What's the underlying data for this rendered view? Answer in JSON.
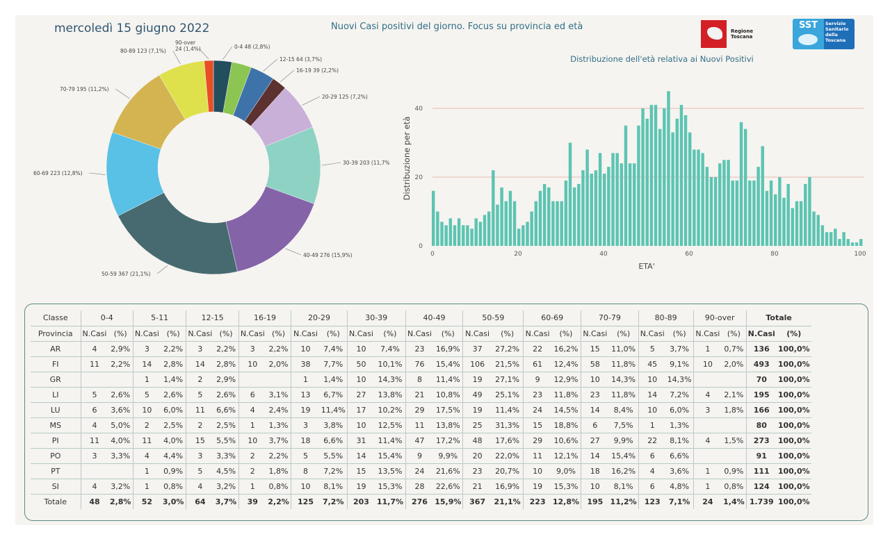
{
  "header": {
    "date": "mercoledì 15 giugno 2022",
    "title": "Nuovi Casi positivi del giorno. Focus su provincia ed età",
    "logo_regione": "Regione Toscana",
    "logo_sst_short": "SST",
    "logo_sst_text": "Servizio Sanitario della Toscana"
  },
  "colors": {
    "histogram_bar": "#5cc4b2",
    "gridline": "#e7b8b2",
    "table_border": "#5a8a86"
  },
  "chart_data": [
    {
      "type": "pie",
      "title": "",
      "categories": [
        "0-4",
        "5-11",
        "12-15",
        "16-19",
        "20-29",
        "30-39",
        "40-49",
        "50-59",
        "60-69",
        "70-79",
        "80-89",
        "90-over"
      ],
      "values": [
        48,
        52,
        64,
        39,
        125,
        203,
        276,
        367,
        223,
        195,
        123,
        24
      ],
      "percent_labels": [
        "2,8%",
        "3,0%",
        "3,7%",
        "2,2%",
        "7,2%",
        "11,7%",
        "15,9%",
        "21,1%",
        "12,8%",
        "11,2%",
        "7,1%",
        "1,4%"
      ],
      "slice_labels": [
        "0-4 48 (2,8%)",
        "",
        "12-15 64 (3,7%)",
        "16-19 39 (2,2%)",
        "20-29 125 (7,2%)",
        "30-39 203 (11,7%)",
        "40-49 276 (15,9%)",
        "50-59 367 (21,1%)",
        "60-69 223 (12,8%)",
        "70-79 195 (11,2%)",
        "80-89 123 (7,1%)",
        "90-over\n24 (1,4%)"
      ],
      "colors": [
        "#234e5e",
        "#8cc552",
        "#3e73aa",
        "#5c3130",
        "#c9b0d8",
        "#8ed2c4",
        "#8463a9",
        "#466a6f",
        "#59c0e6",
        "#d4b450",
        "#dee14c",
        "#e84e25"
      ]
    },
    {
      "type": "bar",
      "title": "Distribuzione dell'età relativa ai Nuovi Positivi",
      "xlabel": "ETA'",
      "ylabel": "Distribuzione per età",
      "xlim": [
        0,
        100
      ],
      "ylim": [
        0,
        45
      ],
      "xticks": [
        "0",
        "20",
        "40",
        "60",
        "80",
        "100"
      ],
      "yticks": [
        "0",
        "20",
        "40"
      ],
      "x": [
        0,
        1,
        2,
        3,
        4,
        5,
        6,
        7,
        8,
        9,
        10,
        11,
        12,
        13,
        14,
        15,
        16,
        17,
        18,
        19,
        20,
        21,
        22,
        23,
        24,
        25,
        26,
        27,
        28,
        29,
        30,
        31,
        32,
        33,
        34,
        35,
        36,
        37,
        38,
        39,
        40,
        41,
        42,
        43,
        44,
        45,
        46,
        47,
        48,
        49,
        50,
        51,
        52,
        53,
        54,
        55,
        56,
        57,
        58,
        59,
        60,
        61,
        62,
        63,
        64,
        65,
        66,
        67,
        68,
        69,
        70,
        71,
        72,
        73,
        74,
        75,
        76,
        77,
        78,
        79,
        80,
        81,
        82,
        83,
        84,
        85,
        86,
        87,
        88,
        89,
        90,
        91,
        92,
        93,
        94,
        95,
        96,
        97,
        98,
        99,
        100
      ],
      "values": [
        16,
        10,
        7,
        6,
        8,
        6,
        8,
        6,
        6,
        5,
        8,
        7,
        9,
        10,
        22,
        12,
        17,
        13,
        16,
        13,
        5,
        6,
        7,
        10,
        13,
        16,
        18,
        17,
        13,
        13,
        13,
        19,
        30,
        17,
        18,
        22,
        28,
        21,
        22,
        27,
        21,
        23,
        27,
        27,
        24,
        35,
        24,
        24,
        35,
        40,
        37,
        41,
        41,
        34,
        40,
        45,
        33,
        37,
        41,
        38,
        33,
        28,
        28,
        27,
        23,
        20,
        20,
        24,
        25,
        25,
        19,
        19,
        36,
        34,
        19,
        19,
        23,
        29,
        16,
        19,
        15,
        20,
        14,
        18,
        11,
        13,
        13,
        18,
        20,
        10,
        9,
        6,
        4,
        4,
        5,
        2,
        4,
        2,
        1,
        1,
        2
      ]
    }
  ],
  "table": {
    "header_classe": "Classe",
    "header_provincia": "Provincia",
    "totale_label": "Totale",
    "groups": [
      "0-4",
      "5-11",
      "12-15",
      "16-19",
      "20-29",
      "30-39",
      "40-49",
      "50-59",
      "60-69",
      "70-79",
      "80-89",
      "90-over"
    ],
    "sub_ncasi": "N.Casi",
    "sub_pct": "(%)",
    "rows": [
      {
        "prov": "AR",
        "cells": [
          "4",
          "2,9%",
          "3",
          "2,2%",
          "3",
          "2,2%",
          "3",
          "2,2%",
          "10",
          "7,4%",
          "10",
          "7,4%",
          "23",
          "16,9%",
          "37",
          "27,2%",
          "22",
          "16,2%",
          "15",
          "11,0%",
          "5",
          "3,7%",
          "1",
          "0,7%"
        ],
        "tot": "136",
        "totpct": "100,0%"
      },
      {
        "prov": "FI",
        "cells": [
          "11",
          "2,2%",
          "14",
          "2,8%",
          "14",
          "2,8%",
          "10",
          "2,0%",
          "38",
          "7,7%",
          "50",
          "10,1%",
          "76",
          "15,4%",
          "106",
          "21,5%",
          "61",
          "12,4%",
          "58",
          "11,8%",
          "45",
          "9,1%",
          "10",
          "2,0%"
        ],
        "tot": "493",
        "totpct": "100,0%"
      },
      {
        "prov": "GR",
        "cells": [
          "",
          "",
          "1",
          "1,4%",
          "2",
          "2,9%",
          "",
          "",
          "1",
          "1,4%",
          "10",
          "14,3%",
          "8",
          "11,4%",
          "19",
          "27,1%",
          "9",
          "12,9%",
          "10",
          "14,3%",
          "10",
          "14,3%",
          "",
          ""
        ],
        "tot": "70",
        "totpct": "100,0%"
      },
      {
        "prov": "LI",
        "cells": [
          "5",
          "2,6%",
          "5",
          "2,6%",
          "5",
          "2,6%",
          "6",
          "3,1%",
          "13",
          "6,7%",
          "27",
          "13,8%",
          "21",
          "10,8%",
          "49",
          "25,1%",
          "23",
          "11,8%",
          "23",
          "11,8%",
          "14",
          "7,2%",
          "4",
          "2,1%"
        ],
        "tot": "195",
        "totpct": "100,0%"
      },
      {
        "prov": "LU",
        "cells": [
          "6",
          "3,6%",
          "10",
          "6,0%",
          "11",
          "6,6%",
          "4",
          "2,4%",
          "19",
          "11,4%",
          "17",
          "10,2%",
          "29",
          "17,5%",
          "19",
          "11,4%",
          "24",
          "14,5%",
          "14",
          "8,4%",
          "10",
          "6,0%",
          "3",
          "1,8%"
        ],
        "tot": "166",
        "totpct": "100,0%"
      },
      {
        "prov": "MS",
        "cells": [
          "4",
          "5,0%",
          "2",
          "2,5%",
          "2",
          "2,5%",
          "1",
          "1,3%",
          "3",
          "3,8%",
          "10",
          "12,5%",
          "11",
          "13,8%",
          "25",
          "31,3%",
          "15",
          "18,8%",
          "6",
          "7,5%",
          "1",
          "1,3%",
          "",
          ""
        ],
        "tot": "80",
        "totpct": "100,0%"
      },
      {
        "prov": "PI",
        "cells": [
          "11",
          "4,0%",
          "11",
          "4,0%",
          "15",
          "5,5%",
          "10",
          "3,7%",
          "18",
          "6,6%",
          "31",
          "11,4%",
          "47",
          "17,2%",
          "48",
          "17,6%",
          "29",
          "10,6%",
          "27",
          "9,9%",
          "22",
          "8,1%",
          "4",
          "1,5%"
        ],
        "tot": "273",
        "totpct": "100,0%"
      },
      {
        "prov": "PO",
        "cells": [
          "3",
          "3,3%",
          "4",
          "4,4%",
          "3",
          "3,3%",
          "2",
          "2,2%",
          "5",
          "5,5%",
          "14",
          "15,4%",
          "9",
          "9,9%",
          "20",
          "22,0%",
          "11",
          "12,1%",
          "14",
          "15,4%",
          "6",
          "6,6%",
          "",
          ""
        ],
        "tot": "91",
        "totpct": "100,0%"
      },
      {
        "prov": "PT",
        "cells": [
          "",
          "",
          "1",
          "0,9%",
          "5",
          "4,5%",
          "2",
          "1,8%",
          "8",
          "7,2%",
          "15",
          "13,5%",
          "24",
          "21,6%",
          "23",
          "20,7%",
          "10",
          "9,0%",
          "18",
          "16,2%",
          "4",
          "3,6%",
          "1",
          "0,9%"
        ],
        "tot": "111",
        "totpct": "100,0%"
      },
      {
        "prov": "SI",
        "cells": [
          "4",
          "3,2%",
          "1",
          "0,8%",
          "4",
          "3,2%",
          "1",
          "0,8%",
          "10",
          "8,1%",
          "19",
          "15,3%",
          "28",
          "22,6%",
          "21",
          "16,9%",
          "19",
          "15,3%",
          "10",
          "8,1%",
          "6",
          "4,8%",
          "1",
          "0,8%"
        ],
        "tot": "124",
        "totpct": "100,0%"
      }
    ],
    "total_row": {
      "cells": [
        "48",
        "2,8%",
        "52",
        "3,0%",
        "64",
        "3,7%",
        "39",
        "2,2%",
        "125",
        "7,2%",
        "203",
        "11,7%",
        "276",
        "15,9%",
        "367",
        "21,1%",
        "223",
        "12,8%",
        "195",
        "11,2%",
        "123",
        "7,1%",
        "24",
        "1,4%"
      ],
      "tot": "1.739",
      "totpct": "100,0%"
    }
  }
}
